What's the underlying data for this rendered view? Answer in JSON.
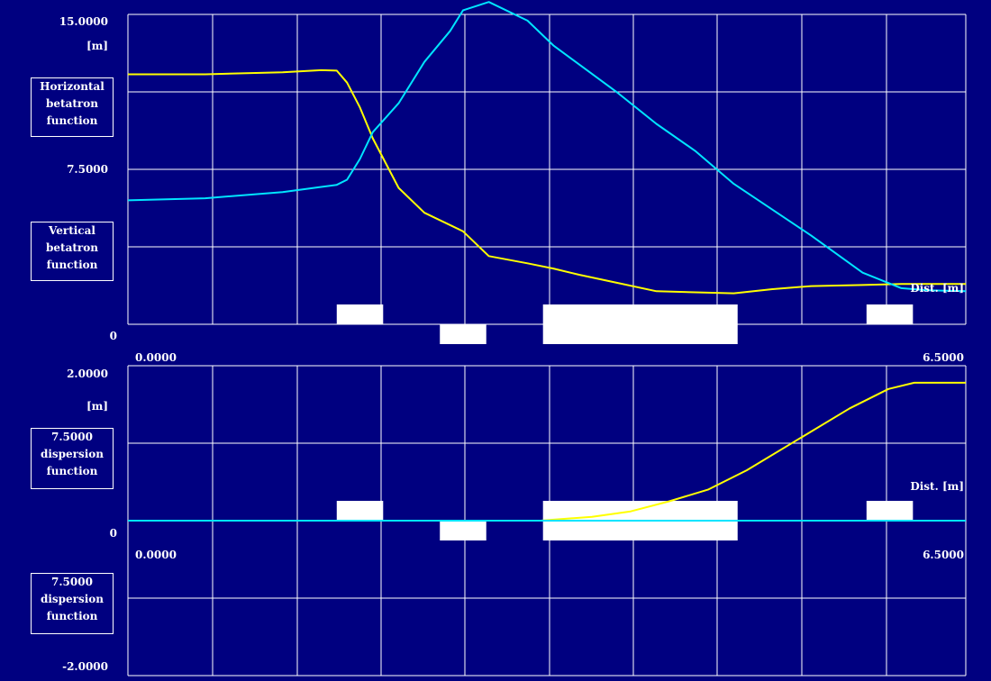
{
  "colors": {
    "background": "#000080",
    "grid": "#ffffff",
    "horizontal": "#ffff00",
    "vertical": "#00e5ff",
    "element": "#ffffff"
  },
  "top_panel": {
    "y_max_label": "15.0000",
    "y_mid_label": "7.5000",
    "y_zero_label": "0",
    "unit_label": "[m]",
    "x_min_label": "0.0000",
    "x_max_label": "6.5000",
    "dist_label": "Dist. [m]",
    "legend_horizontal": [
      "Horizontal",
      "betatron",
      "function"
    ],
    "legend_vertical": [
      "Vertical",
      "betatron",
      "function"
    ]
  },
  "bottom_panel": {
    "y_max_label": "2.0000",
    "unit_label": "[m]",
    "y_zero_label": "0",
    "y_min_label": "-2.0000",
    "x_min_label": "0.0000",
    "x_max_label": "6.5000",
    "dist_label": "Dist. [m]",
    "legend_upper": [
      "7.5000",
      "dispersion",
      "function"
    ],
    "legend_lower": [
      "7.5000",
      "dispersion",
      "function"
    ]
  },
  "chart_data": [
    {
      "type": "line",
      "panel": "betatron",
      "xlim": [
        0,
        6.5
      ],
      "ylim": [
        0,
        15
      ],
      "ylabel": "[m]",
      "xlabel": "Dist. [m]",
      "grid": true,
      "series": [
        {
          "name": "Horizontal betatron function",
          "color": "#ffff00",
          "x": [
            0,
            0.6,
            1.2,
            1.5,
            1.62,
            1.7,
            1.8,
            1.9,
            2.1,
            2.3,
            2.6,
            2.8,
            3.1,
            3.3,
            3.5,
            3.8,
            4.1,
            4.7,
            5.0,
            5.3,
            5.7,
            6.0,
            6.2,
            6.5
          ],
          "values": [
            12.1,
            12.1,
            12.2,
            12.3,
            12.28,
            11.7,
            10.5,
            9.0,
            6.6,
            5.4,
            4.5,
            3.3,
            2.95,
            2.7,
            2.4,
            2.0,
            1.6,
            1.5,
            1.7,
            1.85,
            1.9,
            1.95,
            1.95,
            1.95
          ]
        },
        {
          "name": "Vertical betatron function",
          "color": "#00e5ff",
          "x": [
            0,
            0.6,
            1.2,
            1.5,
            1.62,
            1.7,
            1.8,
            1.9,
            2.1,
            2.3,
            2.5,
            2.6,
            2.8,
            3.1,
            3.3,
            3.8,
            4.1,
            4.4,
            4.7,
            5.3,
            5.7,
            6.0,
            6.2,
            6.5
          ],
          "values": [
            6.0,
            6.1,
            6.4,
            6.65,
            6.75,
            7.0,
            8.0,
            9.3,
            10.7,
            12.7,
            14.2,
            15.2,
            15.6,
            14.7,
            13.5,
            11.2,
            9.7,
            8.4,
            6.8,
            4.3,
            2.5,
            1.75,
            1.65,
            1.6
          ]
        }
      ],
      "elements": [
        {
          "start": 1.62,
          "end": 1.98,
          "side": "above"
        },
        {
          "start": 2.42,
          "end": 2.78,
          "side": "below"
        },
        {
          "start": 3.22,
          "end": 4.73,
          "side": "both"
        },
        {
          "start": 5.73,
          "end": 6.09,
          "side": "above"
        }
      ]
    },
    {
      "type": "line",
      "panel": "dispersion",
      "xlim": [
        0,
        6.5
      ],
      "ylim": [
        -2,
        2
      ],
      "ylabel": "[m]",
      "xlabel": "Dist. [m]",
      "grid": true,
      "series": [
        {
          "name": "dispersion function",
          "color": "#ffff00",
          "x": [
            0,
            3.2,
            3.6,
            3.9,
            4.2,
            4.5,
            4.8,
            5.2,
            5.6,
            5.9,
            6.1,
            6.5
          ],
          "values": [
            0,
            0,
            0.05,
            0.12,
            0.25,
            0.4,
            0.65,
            1.05,
            1.45,
            1.7,
            1.78,
            1.78
          ]
        },
        {
          "name": "dispersion function",
          "color": "#00e5ff",
          "x": [
            0,
            6.5
          ],
          "values": [
            0,
            0
          ]
        }
      ],
      "elements": [
        {
          "start": 1.62,
          "end": 1.98,
          "side": "above"
        },
        {
          "start": 2.42,
          "end": 2.78,
          "side": "below"
        },
        {
          "start": 3.22,
          "end": 4.73,
          "side": "both"
        },
        {
          "start": 5.73,
          "end": 6.09,
          "side": "above"
        }
      ]
    }
  ]
}
